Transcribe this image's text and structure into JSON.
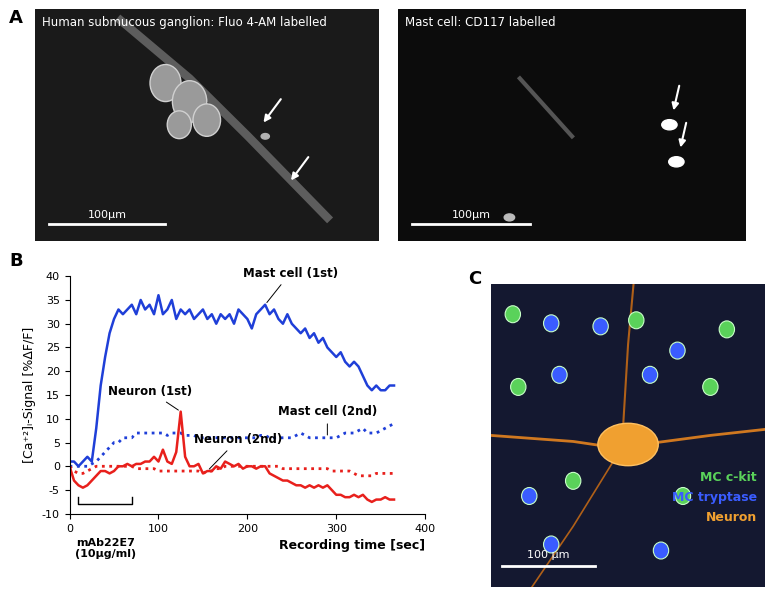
{
  "panels": [
    {
      "label": "A",
      "images": [
        {
          "caption": "Human submucous ganglion: Fluo 4-AM labelled",
          "scale_bar": "100µm"
        },
        {
          "caption": "Mast cell: CD117 labelled",
          "scale_bar": "100µm"
        }
      ]
    },
    {
      "label": "B"
    },
    {
      "label": "C",
      "image": {
        "legend": [
          {
            "text": "MC c-kit",
            "color": "#5ad25a"
          },
          {
            "text": "MC tryptase",
            "color": "#3a5cff"
          },
          {
            "text": "Neuron",
            "color": "#f0a030"
          }
        ],
        "scale_bar": "100 µm"
      }
    }
  ],
  "chart_data": {
    "type": "line",
    "xlabel": "Recording time [sec]",
    "ylabel": "[Ca⁺²]ᵢ-Signal [%ΔF/F]",
    "xlim": [
      0,
      400
    ],
    "xticks": [
      0,
      100,
      200,
      300,
      400
    ],
    "ylim": [
      -10,
      40
    ],
    "yticks": [
      -10,
      -5,
      0,
      5,
      10,
      15,
      20,
      25,
      30,
      35,
      40
    ],
    "stimulus": {
      "label": "mAb22E7",
      "concentration": "(10µg/ml)",
      "start": 10,
      "end": 70
    },
    "x": [
      0,
      5,
      10,
      15,
      20,
      25,
      30,
      35,
      40,
      45,
      50,
      55,
      60,
      65,
      70,
      75,
      80,
      85,
      90,
      95,
      100,
      105,
      110,
      115,
      120,
      125,
      130,
      135,
      140,
      145,
      150,
      155,
      160,
      165,
      170,
      175,
      180,
      185,
      190,
      195,
      200,
      205,
      210,
      215,
      220,
      225,
      230,
      235,
      240,
      245,
      250,
      255,
      260,
      265,
      270,
      275,
      280,
      285,
      290,
      295,
      300,
      305,
      310,
      315,
      320,
      325,
      330,
      335,
      340,
      345,
      350,
      355,
      360,
      365
    ],
    "series": [
      {
        "name": "Mast cell (1st)",
        "color": "#1f3fd8",
        "line_style": "solid",
        "values": [
          1,
          1,
          0,
          1,
          2,
          1,
          8,
          17,
          23,
          28,
          31,
          33,
          32,
          33,
          34,
          32,
          35,
          33,
          34,
          32,
          36,
          32,
          33,
          35,
          31,
          33,
          32,
          33,
          31,
          32,
          33,
          31,
          32,
          30,
          32,
          31,
          32,
          30,
          33,
          32,
          31,
          29,
          32,
          33,
          34,
          32,
          33,
          31,
          30,
          32,
          30,
          29,
          28,
          29,
          27,
          28,
          26,
          27,
          25,
          24,
          23,
          24,
          22,
          21,
          22,
          21,
          19,
          17,
          16,
          17,
          16,
          16,
          17,
          17
        ]
      },
      {
        "name": "Mast cell (2nd)",
        "color": "#1f3fd8",
        "line_style": "dotted",
        "values": [
          0,
          0,
          0,
          0,
          0,
          0.5,
          1,
          2,
          3,
          4,
          5,
          5,
          6,
          6,
          6,
          7,
          7,
          7,
          7,
          7,
          7,
          7,
          6.5,
          7,
          7,
          7,
          6.5,
          6.5,
          6.5,
          6,
          6,
          6,
          6,
          6,
          6,
          6,
          6,
          6,
          6,
          6,
          6,
          6,
          6,
          6.5,
          6.5,
          6,
          6,
          6,
          6,
          6,
          6,
          6.5,
          7,
          6.5,
          6,
          6,
          6,
          6,
          6,
          6,
          6,
          6.5,
          7,
          7,
          7,
          7.5,
          8,
          7,
          7,
          7,
          7.5,
          8,
          8.5,
          9
        ]
      },
      {
        "name": "Neuron (1st)",
        "color": "#e8201c",
        "line_style": "solid",
        "values": [
          0,
          -3,
          -4,
          -4.5,
          -4,
          -3,
          -2,
          -1,
          -1,
          -1.5,
          -1,
          0,
          0,
          0.5,
          0,
          0.5,
          0.5,
          1,
          1,
          2,
          1,
          3.5,
          1,
          0.5,
          3,
          11.5,
          2,
          0,
          0,
          0.5,
          -1.5,
          -1,
          -1,
          0,
          -0.5,
          1,
          0.5,
          0,
          0.5,
          -0.5,
          0,
          0,
          -0.5,
          0,
          0,
          -1.5,
          -2,
          -2.5,
          -3,
          -3,
          -3.5,
          -4,
          -4,
          -4.5,
          -4,
          -4.5,
          -4,
          -4.5,
          -4,
          -5,
          -6,
          -6,
          -6.5,
          -6.5,
          -6,
          -6.5,
          -6,
          -7,
          -7.5,
          -7,
          -7,
          -6.5,
          -7,
          -7
        ]
      },
      {
        "name": "Neuron (2nd)",
        "color": "#e8201c",
        "line_style": "dotted",
        "values": [
          0,
          -1,
          -1.5,
          -1.5,
          -1,
          -0.5,
          0,
          0,
          0,
          0,
          0,
          0,
          0,
          0,
          0,
          -0.5,
          -0.5,
          -0.5,
          -0.5,
          -0.5,
          -1,
          -1,
          -1,
          -1,
          -1,
          -1,
          -1,
          -1,
          -1,
          -1,
          -1.5,
          -1,
          -1,
          -0.5,
          -0.5,
          0,
          0,
          0,
          0,
          0,
          0,
          0,
          0,
          0,
          0,
          0,
          0,
          0,
          -0.5,
          -0.5,
          -0.5,
          -0.5,
          -0.5,
          -0.5,
          -0.5,
          -0.5,
          -0.5,
          -0.5,
          -0.5,
          -1,
          -1,
          -1,
          -1,
          -1,
          -1.5,
          -2,
          -2,
          -2,
          -2,
          -1.5,
          -1.5,
          -1.5,
          -1.5,
          -1.5
        ]
      }
    ]
  }
}
